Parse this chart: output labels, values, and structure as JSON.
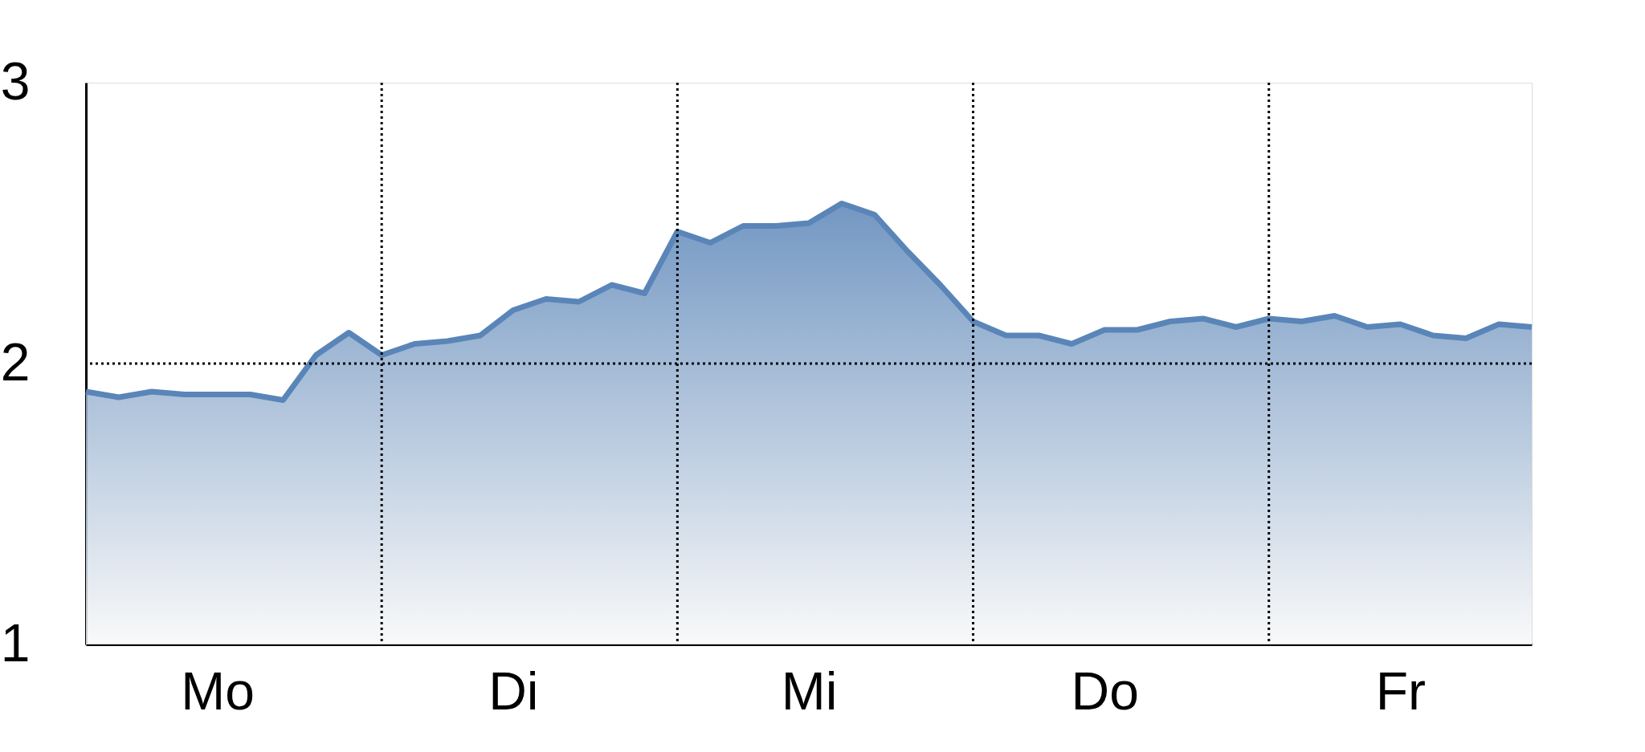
{
  "chart_data": {
    "type": "area",
    "categories": [
      null,
      null,
      null,
      null,
      "Mo",
      null,
      null,
      null,
      null,
      null,
      null,
      null,
      null,
      "Di",
      null,
      null,
      null,
      null,
      null,
      null,
      null,
      null,
      "Mi",
      null,
      null,
      null,
      null,
      null,
      null,
      null,
      null,
      "Do",
      null,
      null,
      null,
      null,
      null,
      null,
      null,
      null,
      "Fr",
      null,
      null,
      null,
      null
    ],
    "series": [
      {
        "color": "#5a85b8",
        "values": [
          1.9,
          1.88,
          1.9,
          1.89,
          1.89,
          1.89,
          1.87,
          2.03,
          2.11,
          2.03,
          2.07,
          2.08,
          2.1,
          2.19,
          2.23,
          2.22,
          2.28,
          2.25,
          2.47,
          2.43,
          2.49,
          2.49,
          2.5,
          2.57,
          2.53,
          2.4,
          2.28,
          2.15,
          2.1,
          2.1,
          2.07,
          2.12,
          2.12,
          2.15,
          2.16,
          2.13,
          2.16,
          2.15,
          2.17,
          2.13,
          2.14,
          2.1,
          2.09,
          2.14,
          2.13
        ]
      }
    ],
    "ylim": [
      1,
      3
    ],
    "yticks": [
      1,
      2,
      3
    ],
    "ref_lines": [
      {
        "axis": "y",
        "value": 2,
        "line_style": "dotted"
      }
    ],
    "grid": "x",
    "marker": "none",
    "line_style": "solid"
  }
}
